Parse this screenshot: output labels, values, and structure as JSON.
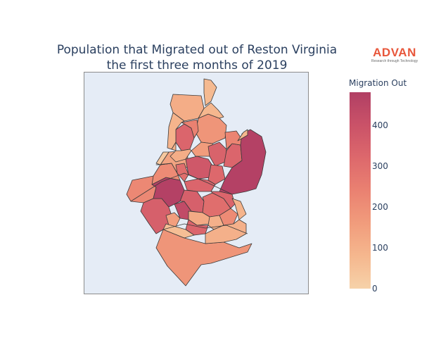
{
  "title": {
    "line1": "Population that Migrated out of Reston Virginia",
    "line2": "the first three months of 2019"
  },
  "logo": {
    "word": "ADVAN",
    "tagline": "Research through Technology",
    "color": "#e8573b"
  },
  "colorbar": {
    "title": "Migration Out",
    "min": 0,
    "max": 480,
    "ticks": [
      "0",
      "100",
      "200",
      "300",
      "400"
    ],
    "tick_values": [
      0,
      100,
      200,
      300,
      400
    ],
    "colorscale": [
      "#f6d2a9",
      "#f5b78e",
      "#f19c7c",
      "#ea8171",
      "#dd686c",
      "#ca5268",
      "#b13f64"
    ]
  },
  "chart_data": {
    "type": "choropleth",
    "title": "Population that Migrated out of Reston Virginia the first three months of 2019",
    "colorbar_title": "Migration Out",
    "range": [
      0,
      480
    ],
    "regions": [
      {
        "id": "r1",
        "value": 220
      },
      {
        "id": "r2",
        "value": 110
      },
      {
        "id": "r3",
        "value": 70
      },
      {
        "id": "r4",
        "value": 180
      },
      {
        "id": "r5",
        "value": 330
      },
      {
        "id": "r6",
        "value": 80
      },
      {
        "id": "r7",
        "value": 240
      },
      {
        "id": "r8",
        "value": 90
      },
      {
        "id": "r9",
        "value": 340
      },
      {
        "id": "r10",
        "value": 160
      },
      {
        "id": "r11",
        "value": 380
      },
      {
        "id": "r12",
        "value": 330
      },
      {
        "id": "r13",
        "value": 230
      },
      {
        "id": "r14",
        "value": 320
      },
      {
        "id": "r15",
        "value": 300
      },
      {
        "id": "r16",
        "value": 330
      },
      {
        "id": "r17",
        "value": 470
      },
      {
        "id": "r18",
        "value": 80
      },
      {
        "id": "r19",
        "value": 430
      },
      {
        "id": "r20",
        "value": 210
      },
      {
        "id": "r21",
        "value": 350
      },
      {
        "id": "r22",
        "value": 300
      },
      {
        "id": "r23",
        "value": 330
      },
      {
        "id": "r24",
        "value": 140
      },
      {
        "id": "r25",
        "value": 350
      },
      {
        "id": "r26",
        "value": 470
      },
      {
        "id": "r27",
        "value": 120
      },
      {
        "id": "r28",
        "value": 100
      },
      {
        "id": "r29",
        "value": 210
      },
      {
        "id": "r30",
        "value": 90
      },
      {
        "id": "r31",
        "value": 150
      },
      {
        "id": "r32",
        "value": 330
      },
      {
        "id": "r33",
        "value": 100
      },
      {
        "id": "r34",
        "value": 60
      },
      {
        "id": "r35",
        "value": 110
      },
      {
        "id": "r36",
        "value": 40
      },
      {
        "id": "r37",
        "value": 30
      },
      {
        "id": "r38",
        "value": 90
      },
      {
        "id": "r39",
        "value": 180
      }
    ]
  }
}
